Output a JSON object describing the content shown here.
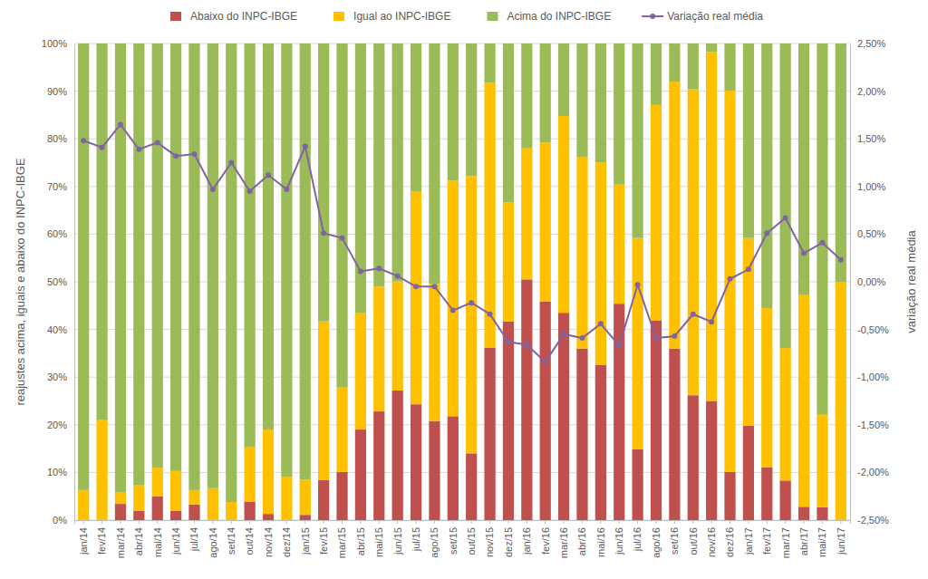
{
  "chart_data": {
    "type": "bar",
    "stacked": true,
    "grid": true,
    "legend": "top",
    "y_label": "reajustes acima, iguais e abaixo do INPC-IBGE",
    "y2_label": "variação real média",
    "categories": [
      "jan/14",
      "fev/14",
      "mar/14",
      "abr/14",
      "mai/14",
      "jun/14",
      "jul/14",
      "ago/14",
      "set/14",
      "out/14",
      "nov/14",
      "dez/14",
      "jan/15",
      "fev/15",
      "mar/15",
      "abr/15",
      "mai/15",
      "jun/15",
      "jul/15",
      "ago/15",
      "set/15",
      "out/15",
      "nov/15",
      "dez/15",
      "jan/16",
      "fev/16",
      "mar/16",
      "abr/16",
      "mai/16",
      "jun/16",
      "jul/16",
      "ago/16",
      "set/16",
      "out/16",
      "nov/16",
      "dez/16",
      "jan/17",
      "fev/17",
      "mar/17",
      "abr/17",
      "mai/17",
      "jun/17"
    ],
    "ylim": [
      0,
      100
    ],
    "yticks": [
      {
        "value": 0,
        "label": "0%"
      },
      {
        "value": 10,
        "label": "10%"
      },
      {
        "value": 20,
        "label": "20%"
      },
      {
        "value": 30,
        "label": "30%"
      },
      {
        "value": 40,
        "label": "40%"
      },
      {
        "value": 50,
        "label": "50%"
      },
      {
        "value": 60,
        "label": "60%"
      },
      {
        "value": 70,
        "label": "70%"
      },
      {
        "value": 80,
        "label": "80%"
      },
      {
        "value": 90,
        "label": "90%"
      },
      {
        "value": 100,
        "label": "100%"
      }
    ],
    "y2lim": [
      -2.5,
      2.5
    ],
    "y2ticks": [
      {
        "value": -2.5,
        "label": "-2,50%"
      },
      {
        "value": -2,
        "label": "-2,00%"
      },
      {
        "value": -1.5,
        "label": "-1,50%"
      },
      {
        "value": -1,
        "label": "-1,00%"
      },
      {
        "value": -0.5,
        "label": "-0,50%"
      },
      {
        "value": 0,
        "label": "0,00%"
      },
      {
        "value": 0.5,
        "label": "0,50%"
      },
      {
        "value": 1,
        "label": "1,00%"
      },
      {
        "value": 1.5,
        "label": "1,50%"
      },
      {
        "value": 2,
        "label": "2,00%"
      },
      {
        "value": 2.5,
        "label": "2,50%"
      }
    ],
    "series": [
      {
        "name": "Abaixo do INPC-IBGE",
        "type": "bar",
        "color": "#c0504d",
        "values": [
          0,
          0,
          3.4,
          1.9,
          5,
          2,
          3.3,
          0,
          0,
          3.8,
          1.3,
          0,
          1.1,
          8.4,
          10.1,
          19,
          22.8,
          27.2,
          24.3,
          20.8,
          21.8,
          14,
          36.2,
          41.7,
          50.5,
          45.9,
          43.5,
          36,
          32.6,
          45.4,
          14.9,
          41.9,
          36,
          26.2,
          25,
          10.1,
          19.8,
          11.1,
          8.3,
          2.8,
          2.7,
          0
        ]
      },
      {
        "name": "Igual ao INPC-IBGE",
        "type": "bar",
        "color": "#ffc000",
        "values": [
          6.3,
          21.1,
          2.5,
          5.5,
          6,
          8.3,
          3,
          6.7,
          3.8,
          11.6,
          17.7,
          9.1,
          7.4,
          33.3,
          17.7,
          24.4,
          26.2,
          22.9,
          44.7,
          28.8,
          49.4,
          58.2,
          55.6,
          25,
          27.5,
          33.3,
          41.3,
          40.1,
          42.4,
          25,
          44.3,
          45.2,
          56,
          64.2,
          73.2,
          80,
          39.4,
          33.4,
          27.8,
          44.4,
          19.4,
          50
        ]
      },
      {
        "name": "Acima do INPC-IBGE",
        "type": "bar",
        "color": "#9bbb59",
        "values": [
          93.7,
          78.9,
          94.1,
          92.6,
          89,
          89.7,
          93.7,
          93.3,
          96.2,
          84.6,
          81,
          90.9,
          91.5,
          58.3,
          72.2,
          56.6,
          51,
          49.9,
          31,
          50.4,
          28.8,
          27.8,
          8.2,
          33.3,
          22,
          20.8,
          15.2,
          23.9,
          25,
          29.6,
          40.8,
          12.9,
          8,
          9.6,
          1.8,
          9.9,
          40.8,
          55.5,
          63.9,
          52.8,
          77.9,
          50
        ]
      },
      {
        "name": "Variação real média",
        "type": "line",
        "axis": "y2",
        "marker": "circle",
        "color": "#8064a2",
        "values": [
          1.48,
          1.41,
          1.65,
          1.39,
          1.46,
          1.32,
          1.34,
          0.97,
          1.25,
          0.95,
          1.12,
          0.97,
          1.42,
          0.51,
          0.46,
          0.11,
          0.14,
          0.06,
          -0.05,
          -0.05,
          -0.3,
          -0.22,
          -0.34,
          -0.63,
          -0.66,
          -0.84,
          -0.55,
          -0.59,
          -0.44,
          -0.67,
          -0.03,
          -0.59,
          -0.57,
          -0.34,
          -0.42,
          0.03,
          0.13,
          0.51,
          0.67,
          0.3,
          0.41,
          0.23
        ]
      }
    ]
  }
}
